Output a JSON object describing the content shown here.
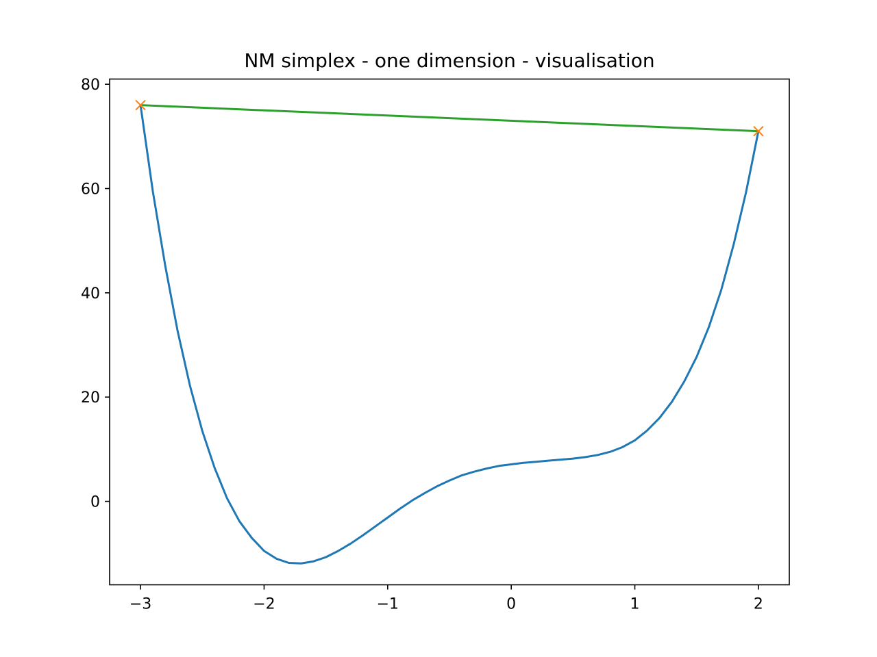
{
  "chart_data": {
    "type": "line",
    "title": "NM simplex - one dimension - visualisation",
    "xlabel": "",
    "ylabel": "",
    "xlim": [
      -3.25,
      2.25
    ],
    "ylim": [
      -16,
      81
    ],
    "grid": false,
    "legend": "none",
    "x_ticks": [
      {
        "value": -3,
        "label": "−3"
      },
      {
        "value": -2,
        "label": "−2"
      },
      {
        "value": -1,
        "label": "−1"
      },
      {
        "value": 0,
        "label": "0"
      },
      {
        "value": 1,
        "label": "1"
      },
      {
        "value": 2,
        "label": "2"
      }
    ],
    "y_ticks": [
      {
        "value": 0,
        "label": "0"
      },
      {
        "value": 20,
        "label": "20"
      },
      {
        "value": 40,
        "label": "40"
      },
      {
        "value": 60,
        "label": "60"
      },
      {
        "value": 80,
        "label": "80"
      }
    ],
    "series": [
      {
        "role": "function-curve",
        "color": "#1f77b4",
        "x": [
          -3.0,
          -2.9,
          -2.8,
          -2.7,
          -2.6,
          -2.5,
          -2.4,
          -2.3,
          -2.2,
          -2.1,
          -2.0,
          -1.9,
          -1.8,
          -1.7,
          -1.6,
          -1.5,
          -1.4,
          -1.3,
          -1.2,
          -1.1,
          -1.0,
          -0.9,
          -0.8,
          -0.7,
          -0.6,
          -0.5,
          -0.4,
          -0.3,
          -0.2,
          -0.1,
          0.0,
          0.1,
          0.2,
          0.3,
          0.4,
          0.5,
          0.6,
          0.7,
          0.8,
          0.9,
          1.0,
          1.1,
          1.2,
          1.3,
          1.4,
          1.5,
          1.6,
          1.7,
          1.8,
          1.9,
          2.0
        ],
        "y": [
          76.0,
          59.4,
          45.2,
          32.7,
          22.2,
          13.5,
          6.4,
          0.6,
          -3.8,
          -7.0,
          -9.5,
          -11.0,
          -11.8,
          -11.9,
          -11.5,
          -10.7,
          -9.5,
          -8.1,
          -6.5,
          -4.8,
          -3.1,
          -1.4,
          0.2,
          1.6,
          2.9,
          4.0,
          5.0,
          5.7,
          6.3,
          6.8,
          7.1,
          7.4,
          7.6,
          7.8,
          8.0,
          8.2,
          8.5,
          8.9,
          9.5,
          10.4,
          11.7,
          13.6,
          16.0,
          19.1,
          23.0,
          27.7,
          33.5,
          40.6,
          49.3,
          59.3,
          71.0
        ]
      },
      {
        "role": "simplex-edge",
        "color": "#2ca02c",
        "x": [
          -3.0,
          2.0
        ],
        "y": [
          76.0,
          71.0
        ]
      }
    ],
    "markers": {
      "color": "#ff7f0e",
      "shape": "x",
      "x": [
        -3.0,
        2.0
      ],
      "y": [
        76.0,
        71.0
      ]
    }
  }
}
